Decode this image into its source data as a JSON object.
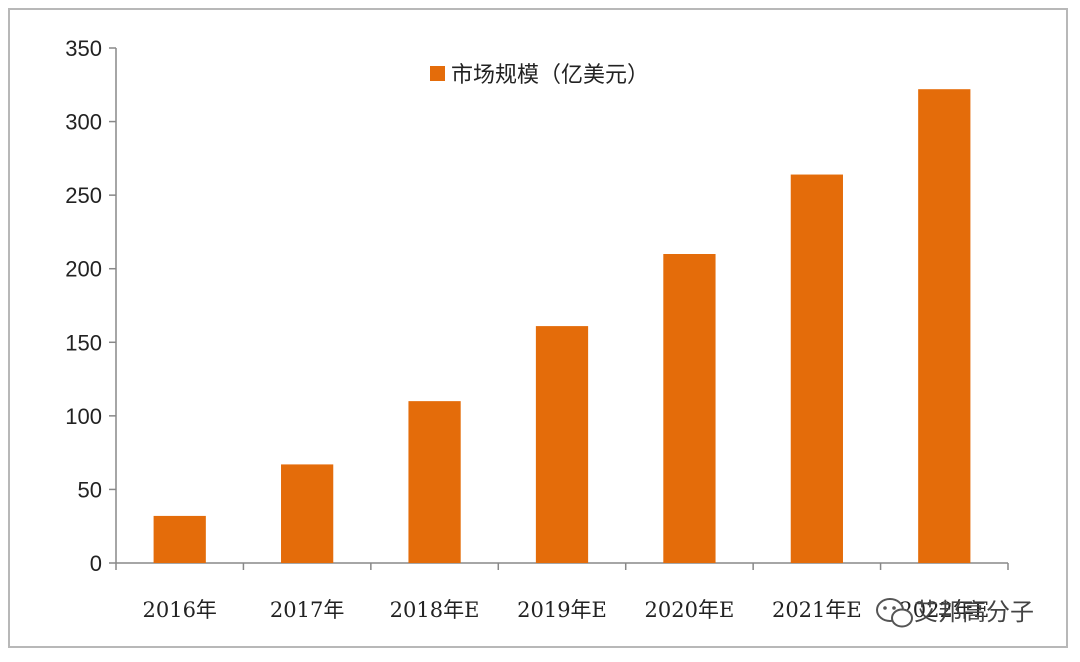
{
  "chart_data": {
    "type": "bar",
    "categories": [
      "2016年",
      "2017年",
      "2018年E",
      "2019年E",
      "2020年E",
      "2021年E",
      "2022年E"
    ],
    "series": [
      {
        "name": "市场规模（亿美元）",
        "values": [
          32,
          67,
          110,
          161,
          210,
          264,
          322
        ]
      }
    ],
    "ylim": [
      0,
      350
    ],
    "yticks": [
      0,
      50,
      100,
      150,
      200,
      250,
      300,
      350
    ],
    "grid": false,
    "legend": "top-center",
    "colors": {
      "bar": "#e46c0a",
      "axis": "#888888"
    }
  },
  "watermark": {
    "text": "艾邦高分子",
    "icon": "wechat-icon"
  }
}
